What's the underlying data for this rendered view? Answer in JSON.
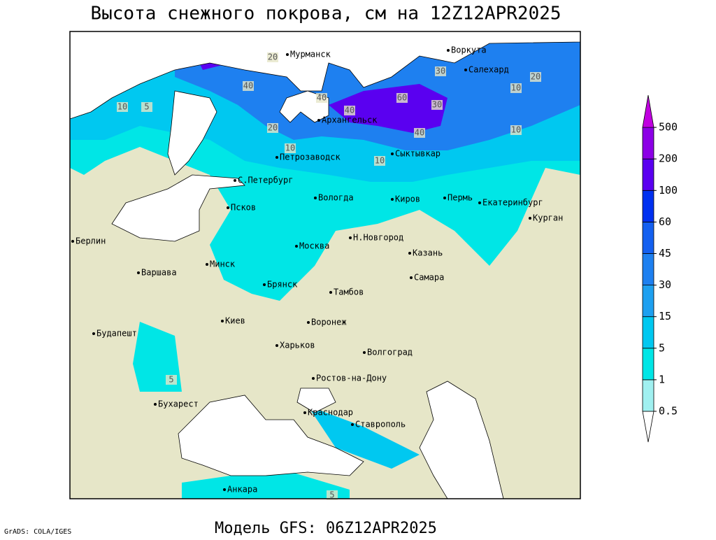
{
  "title": "Высота снежного покрова, см на 12Z12APR2025",
  "subtitle": "Модель GFS: 06Z12APR2025",
  "credit": "GrADS: COLA/IGES",
  "cities": [
    "Мурманск",
    "Воркута",
    "Салехард",
    "Архангельск",
    "Петрозаводск",
    "Сыктывкар",
    "С.Петербург",
    "Вологда",
    "Киров",
    "Пермь",
    "Екатеринбург",
    "Курган",
    "Псков",
    "Н.Новгород",
    "Казань",
    "Москва",
    "Берлин",
    "Варшава",
    "Минск",
    "Брянск",
    "Тамбов",
    "Самара",
    "Киев",
    "Воронеж",
    "Харьков",
    "Волгоград",
    "Будапешт",
    "Ростов-на-Дону",
    "Бухарест",
    "Краснодар",
    "Ставрополь",
    "Анкара"
  ],
  "contour_labels": [
    20,
    40,
    40,
    60,
    40,
    30,
    40,
    20,
    10,
    10,
    10,
    20,
    30,
    10,
    5,
    10,
    5,
    5
  ],
  "colorbar": {
    "levels": [
      0.5,
      1,
      5,
      15,
      30,
      45,
      60,
      100,
      200,
      500
    ],
    "colors": [
      "#ffffff",
      "#a0f0f0",
      "#00e6e6",
      "#00c8f0",
      "#1ea0f0",
      "#1e80f0",
      "#1460f0",
      "#0030f0",
      "#5a00f0",
      "#8c00e6",
      "#c000e0"
    ]
  }
}
